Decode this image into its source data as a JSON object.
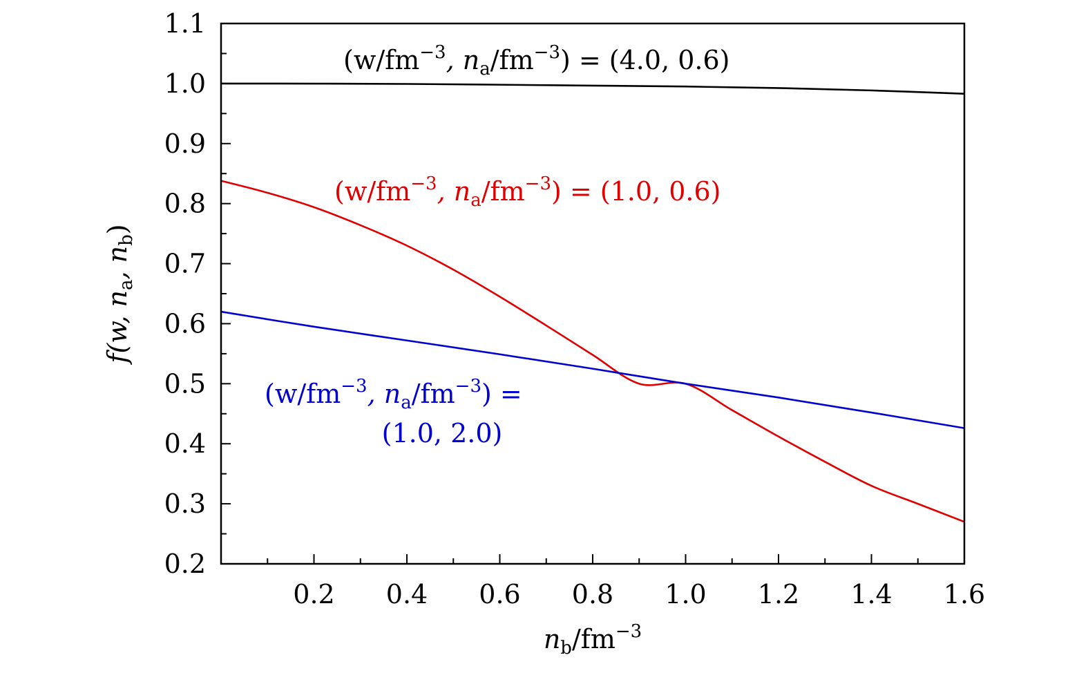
{
  "chart_data": {
    "type": "line",
    "xlabel": {
      "main": "n",
      "sub": "b",
      "unit": "/fm",
      "sup": "−3"
    },
    "ylabel": {
      "text": "f(w, n",
      "sub1": "a",
      "mid": ", n",
      "sub2": "b",
      "end": ")"
    },
    "xlim": [
      0,
      1.6
    ],
    "ylim": [
      0.2,
      1.1
    ],
    "xticks": [
      0.2,
      0.4,
      0.6,
      0.8,
      1.0,
      1.2,
      1.4,
      1.6
    ],
    "xtick_labels": [
      "0.2",
      "0.4",
      "0.6",
      "0.8",
      "1.0",
      "1.2",
      "1.4",
      "1.6"
    ],
    "yticks": [
      0.2,
      0.3,
      0.4,
      0.5,
      0.6,
      0.7,
      0.8,
      0.9,
      1.0,
      1.1
    ],
    "ytick_labels": [
      "0.2",
      "0.3",
      "0.4",
      "0.5",
      "0.6",
      "0.7",
      "0.8",
      "0.9",
      "1.0",
      "1.1"
    ],
    "grid": false,
    "legend": "none",
    "series": [
      {
        "color": "#000000",
        "x": [
          0.0,
          0.2,
          0.4,
          0.6,
          0.8,
          1.0,
          1.2,
          1.4,
          1.6
        ],
        "y": [
          1.0,
          0.9998,
          0.9993,
          0.998,
          0.9965,
          0.995,
          0.9925,
          0.9885,
          0.983
        ],
        "label": {
          "l1": "(w/fm",
          "s1": "−3",
          "l2": ", n",
          "sub": "a",
          "l3": "/fm",
          "s2": "−3",
          "l4": ") = (4.0, 0.6)"
        }
      },
      {
        "color": "#e00000",
        "x": [
          0.0,
          0.1,
          0.2,
          0.3,
          0.4,
          0.5,
          0.6,
          0.7,
          0.8,
          0.9,
          1.0,
          1.1,
          1.2,
          1.3,
          1.4,
          1.5,
          1.6
        ],
        "y": [
          0.838,
          0.818,
          0.794,
          0.764,
          0.73,
          0.69,
          0.645,
          0.597,
          0.548,
          0.5,
          0.5,
          0.456,
          0.412,
          0.37,
          0.33,
          0.3,
          0.27
        ],
        "label": {
          "l1": "(w/fm",
          "s1": "−3",
          "l2": ", n",
          "sub": "a",
          "l3": "/fm",
          "s2": "−3",
          "l4": ") = (1.0, 0.6)"
        }
      },
      {
        "color": "#0000d0",
        "x": [
          0.0,
          0.2,
          0.4,
          0.6,
          0.8,
          1.0,
          1.2,
          1.4,
          1.6
        ],
        "y": [
          0.62,
          0.595,
          0.572,
          0.549,
          0.525,
          0.5,
          0.477,
          0.452,
          0.426
        ],
        "label": {
          "l1": "(w/fm",
          "s1": "−3",
          "l2": ", n",
          "sub": "a",
          "l3": "/fm",
          "s2": "−3",
          "l4": ") =",
          "line2": "(1.0, 2.0)"
        }
      }
    ]
  }
}
